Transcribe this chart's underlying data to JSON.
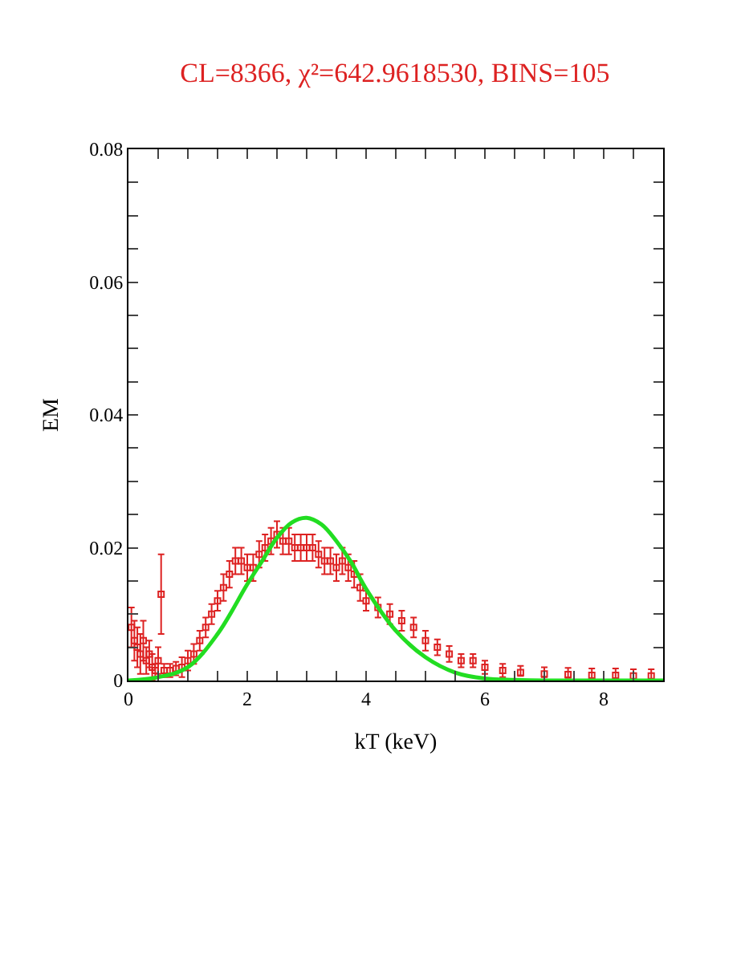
{
  "chart_data": {
    "type": "scatter",
    "title": "CL=8366, χ²=642.9618530, BINS=105",
    "xlabel": "kT (keV)",
    "ylabel": "EM",
    "xlim": [
      0,
      9
    ],
    "ylim": [
      0,
      0.08
    ],
    "xticks": [
      0,
      {
        "value": 0.5,
        "label": null
      },
      {
        "value": 1,
        "label": null
      },
      {
        "value": 1.5,
        "label": null
      },
      2,
      {
        "value": 2.5,
        "label": null
      },
      {
        "value": 3,
        "label": null
      },
      {
        "value": 3.5,
        "label": null
      },
      4,
      {
        "value": 4.5,
        "label": null
      },
      {
        "value": 5,
        "label": null
      },
      {
        "value": 5.5,
        "label": null
      },
      6,
      {
        "value": 6.5,
        "label": null
      },
      {
        "value": 7,
        "label": null
      },
      {
        "value": 7.5,
        "label": null
      },
      8,
      {
        "value": 8.5,
        "label": null
      }
    ],
    "yticks": [
      0,
      {
        "value": 0.005,
        "label": null
      },
      {
        "value": 0.01,
        "label": null
      },
      {
        "value": 0.015,
        "label": null
      },
      0.02,
      {
        "value": 0.025,
        "label": null
      },
      {
        "value": 0.03,
        "label": null
      },
      {
        "value": 0.035,
        "label": null
      },
      0.04,
      {
        "value": 0.045,
        "label": null
      },
      {
        "value": 0.05,
        "label": null
      },
      {
        "value": 0.055,
        "label": null
      },
      0.06,
      {
        "value": 0.065,
        "label": null
      },
      {
        "value": 0.07,
        "label": null
      },
      {
        "value": 0.075,
        "label": null
      },
      0.08
    ],
    "marker": "square",
    "series": [
      {
        "color": "#dd2222",
        "x": [
          0.05,
          0.1,
          0.15,
          0.2,
          0.25,
          0.3,
          0.35,
          0.4,
          0.45,
          0.5,
          0.55,
          0.6,
          0.7,
          0.8,
          0.9,
          1.0,
          1.1,
          1.2,
          1.3,
          1.4,
          1.5,
          1.6,
          1.7,
          1.8,
          1.9,
          2.0,
          2.1,
          2.2,
          2.3,
          2.4,
          2.5,
          2.6,
          2.7,
          2.8,
          2.9,
          3.0,
          3.1,
          3.2,
          3.3,
          3.4,
          3.5,
          3.6,
          3.7,
          3.8,
          3.9,
          4.0,
          4.2,
          4.4,
          4.6,
          4.8,
          5.0,
          5.2,
          5.4,
          5.6,
          5.8,
          6.0,
          6.3,
          6.6,
          7.0,
          7.4,
          7.8,
          8.2,
          8.5,
          8.8
        ],
        "values": [
          0.008,
          0.006,
          0.005,
          0.004,
          0.006,
          0.003,
          0.004,
          0.002,
          0.0015,
          0.003,
          0.013,
          0.0015,
          0.0015,
          0.0018,
          0.002,
          0.003,
          0.004,
          0.006,
          0.008,
          0.01,
          0.012,
          0.014,
          0.016,
          0.018,
          0.018,
          0.017,
          0.017,
          0.019,
          0.02,
          0.021,
          0.022,
          0.021,
          0.021,
          0.02,
          0.02,
          0.02,
          0.02,
          0.019,
          0.018,
          0.018,
          0.017,
          0.018,
          0.017,
          0.016,
          0.014,
          0.012,
          0.011,
          0.01,
          0.009,
          0.008,
          0.006,
          0.005,
          0.004,
          0.003,
          0.003,
          0.002,
          0.0015,
          0.0012,
          0.001,
          0.0009,
          0.0008,
          0.0008,
          0.0007,
          0.0007
        ],
        "errors": [
          0.003,
          0.003,
          0.003,
          0.003,
          0.003,
          0.002,
          0.002,
          0.002,
          0.001,
          0.002,
          0.006,
          0.001,
          0.001,
          0.001,
          0.0015,
          0.0015,
          0.0015,
          0.0015,
          0.0015,
          0.0015,
          0.0015,
          0.002,
          0.002,
          0.002,
          0.002,
          0.002,
          0.002,
          0.002,
          0.002,
          0.002,
          0.002,
          0.002,
          0.002,
          0.002,
          0.002,
          0.002,
          0.002,
          0.002,
          0.002,
          0.002,
          0.002,
          0.002,
          0.002,
          0.002,
          0.002,
          0.0015,
          0.0015,
          0.0015,
          0.0015,
          0.0015,
          0.0015,
          0.0012,
          0.0012,
          0.001,
          0.001,
          0.001,
          0.001,
          [
            0.0007,
            0.0022
          ],
          [
            0.0005,
            0.002
          ],
          [
            0.0004,
            0.0019
          ],
          [
            0.0003,
            0.0018
          ],
          [
            0.0003,
            0.0018
          ],
          [
            0.0002,
            0.0017
          ],
          [
            0.0002,
            0.0017
          ]
        ]
      },
      {
        "type": "line",
        "color": "#22dd22",
        "marker": "none",
        "x": [
          0,
          0.5,
          1.0,
          1.5,
          2.0,
          2.25,
          2.5,
          2.75,
          3.0,
          3.25,
          3.5,
          3.75,
          4.0,
          4.5,
          5.0,
          5.5,
          6.0,
          6.5,
          7,
          8,
          9
        ],
        "values": [
          0,
          0.0005,
          0.002,
          0.007,
          0.0145,
          0.018,
          0.0215,
          0.0238,
          0.0245,
          0.0235,
          0.021,
          0.0178,
          0.0138,
          0.0075,
          0.0035,
          0.0012,
          0.0003,
          0.0001,
          0,
          0,
          0
        ]
      }
    ]
  }
}
